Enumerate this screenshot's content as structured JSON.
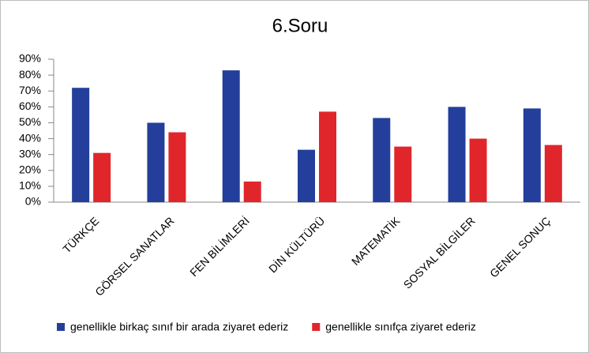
{
  "chart_data": {
    "type": "bar",
    "title": "6.Soru",
    "categories": [
      "TÜRKÇE",
      "GÖRSEL SANATLAR",
      "FEN BİLİMLERİ",
      "DİN KÜLTÜRÜ",
      "MATEMATİK",
      "SOSYAL BİLGİLER",
      "GENEL SONUÇ"
    ],
    "series": [
      {
        "name": "genellikle birkaç sınıf bir arada ziyaret ederiz",
        "color": "#233f9b",
        "values": [
          72,
          50,
          83,
          33,
          53,
          60,
          59
        ]
      },
      {
        "name": "genellikle sınıfça ziyaret ederiz",
        "color": "#e0262b",
        "values": [
          31,
          44,
          13,
          57,
          35,
          40,
          36
        ]
      }
    ],
    "ylim": [
      0,
      90
    ],
    "yticks": [
      {
        "value": 0,
        "label": "0%"
      },
      {
        "value": 10,
        "label": "10%"
      },
      {
        "value": 20,
        "label": "20%"
      },
      {
        "value": 30,
        "label": "30%"
      },
      {
        "value": 40,
        "label": "40%"
      },
      {
        "value": 50,
        "label": "50%"
      },
      {
        "value": 60,
        "label": "60%"
      },
      {
        "value": 70,
        "label": "70%"
      },
      {
        "value": 80,
        "label": "80%"
      },
      {
        "value": 90,
        "label": "90%"
      }
    ],
    "grid": false,
    "legend": "bottom"
  }
}
